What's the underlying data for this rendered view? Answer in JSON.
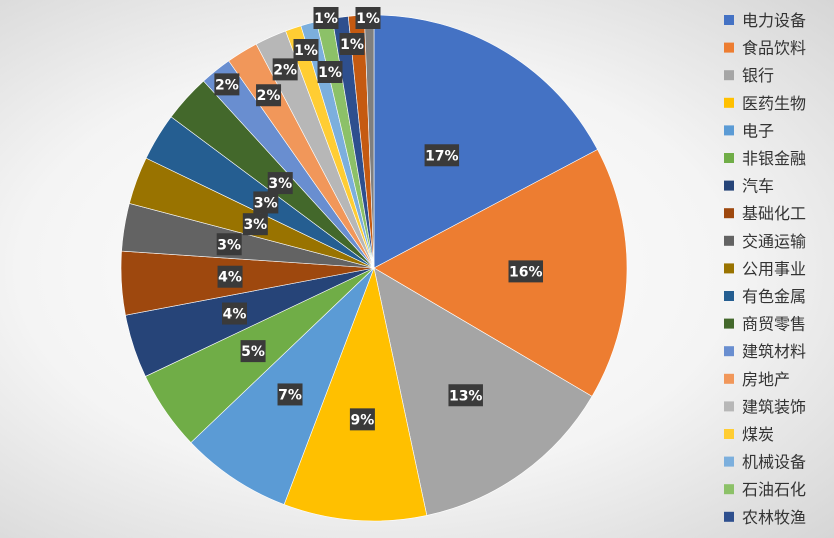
{
  "chart_data": {
    "type": "pie",
    "start_angle_deg": 0,
    "direction": "clockwise",
    "legend_placement": "right",
    "slices": [
      {
        "name": "电力设备",
        "value": 17,
        "label": "17%",
        "color": "#4472C4"
      },
      {
        "name": "食品饮料",
        "value": 16,
        "label": "16%",
        "color": "#ED7D31"
      },
      {
        "name": "银行",
        "value": 13,
        "label": "13%",
        "color": "#A5A5A5"
      },
      {
        "name": "医药生物",
        "value": 9,
        "label": "9%",
        "color": "#FFC000"
      },
      {
        "name": "电子",
        "value": 7,
        "label": "7%",
        "color": "#5B9BD5"
      },
      {
        "name": "非银金融",
        "value": 5,
        "label": "5%",
        "color": "#70AD47"
      },
      {
        "name": "汽车",
        "value": 4,
        "label": "4%",
        "color": "#264478"
      },
      {
        "name": "基础化工",
        "value": 4,
        "label": "4%",
        "color": "#9E480E"
      },
      {
        "name": "交通运输",
        "value": 3,
        "label": "3%",
        "color": "#636363"
      },
      {
        "name": "公用事业",
        "value": 3,
        "label": "3%",
        "color": "#997300"
      },
      {
        "name": "有色金属",
        "value": 3,
        "label": "3%",
        "color": "#255E91"
      },
      {
        "name": "商贸零售",
        "value": 3,
        "label": "3%",
        "color": "#43682B"
      },
      {
        "name": "建筑材料",
        "value": 2,
        "label": "2%",
        "color": "#698ED0"
      },
      {
        "name": "房地产",
        "value": 2,
        "label": "2%",
        "color": "#F1975A"
      },
      {
        "name": "建筑装饰",
        "value": 2,
        "label": "2%",
        "color": "#B7B7B7"
      },
      {
        "name": "煤炭",
        "value": 1,
        "label": "1%",
        "color": "#FFCD33"
      },
      {
        "name": "机械设备",
        "value": 1,
        "label": "1%",
        "color": "#7CAFDD"
      },
      {
        "name": "石油石化",
        "value": 1,
        "label": "1%",
        "color": "#8CC168"
      },
      {
        "name": "农林牧渔",
        "value": 1,
        "label": "1%",
        "color": "#2E4F8E"
      },
      {
        "name": "",
        "value": 1,
        "label": "1%",
        "color": "#C55A11"
      },
      {
        "name": "",
        "value": 0.6,
        "label": "",
        "color": "#7F7F7F"
      }
    ]
  }
}
